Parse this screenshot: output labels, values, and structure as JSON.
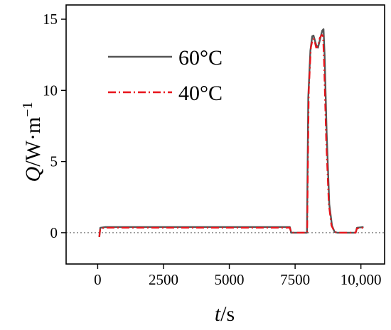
{
  "chart_data": {
    "type": "line",
    "xlabel": {
      "var": "t",
      "unit": "/s"
    },
    "ylabel": {
      "var": "Q",
      "unit": "/W·m",
      "sup": "−1"
    },
    "xlim": [
      -1200,
      10900
    ],
    "ylim": [
      -2.2,
      16
    ],
    "x_ticks": [
      0,
      2500,
      5000,
      7500,
      10000
    ],
    "x_tick_labels": [
      "0",
      "2500",
      "5000",
      "7500",
      "10,000"
    ],
    "y_ticks": [
      0,
      5,
      10,
      15
    ],
    "y_tick_labels": [
      "0",
      "5",
      "10",
      "15"
    ],
    "reference_line": {
      "y": 0,
      "style": "dotted"
    },
    "legend": {
      "position": "top-left"
    },
    "series": [
      {
        "name": "60°C",
        "color": "#555555",
        "style": "solid",
        "points": [
          [
            60,
            -0.3
          ],
          [
            100,
            0.35
          ],
          [
            300,
            0.4
          ],
          [
            1000,
            0.4
          ],
          [
            2500,
            0.4
          ],
          [
            5000,
            0.4
          ],
          [
            7000,
            0.4
          ],
          [
            7300,
            0.4
          ],
          [
            7350,
            0.0
          ],
          [
            7950,
            0.0
          ],
          [
            8000,
            9.5
          ],
          [
            8080,
            12.8
          ],
          [
            8150,
            13.8
          ],
          [
            8200,
            13.85
          ],
          [
            8300,
            13.2
          ],
          [
            8370,
            13.0
          ],
          [
            8450,
            13.6
          ],
          [
            8530,
            14.2
          ],
          [
            8580,
            14.3
          ],
          [
            8620,
            12.5
          ],
          [
            8700,
            7.0
          ],
          [
            8800,
            2.0
          ],
          [
            8900,
            0.5
          ],
          [
            9000,
            0.05
          ],
          [
            9100,
            0.0
          ],
          [
            9800,
            0.0
          ],
          [
            9850,
            0.35
          ],
          [
            10100,
            0.4
          ]
        ]
      },
      {
        "name": "40°C",
        "color": "#e8141b",
        "style": "dashdot",
        "points": [
          [
            60,
            -0.3
          ],
          [
            100,
            0.3
          ],
          [
            300,
            0.35
          ],
          [
            1000,
            0.35
          ],
          [
            2500,
            0.35
          ],
          [
            5000,
            0.35
          ],
          [
            7000,
            0.35
          ],
          [
            7300,
            0.35
          ],
          [
            7350,
            0.0
          ],
          [
            7960,
            0.0
          ],
          [
            8020,
            10.0
          ],
          [
            8100,
            13.0
          ],
          [
            8170,
            13.6
          ],
          [
            8220,
            13.6
          ],
          [
            8300,
            13.0
          ],
          [
            8370,
            13.1
          ],
          [
            8440,
            13.7
          ],
          [
            8520,
            13.9
          ],
          [
            8560,
            13.8
          ],
          [
            8600,
            12.0
          ],
          [
            8680,
            6.5
          ],
          [
            8780,
            2.0
          ],
          [
            8880,
            0.5
          ],
          [
            9000,
            0.05
          ],
          [
            9100,
            0.0
          ],
          [
            9800,
            0.0
          ],
          [
            9850,
            0.3
          ],
          [
            10100,
            0.35
          ]
        ]
      }
    ]
  }
}
